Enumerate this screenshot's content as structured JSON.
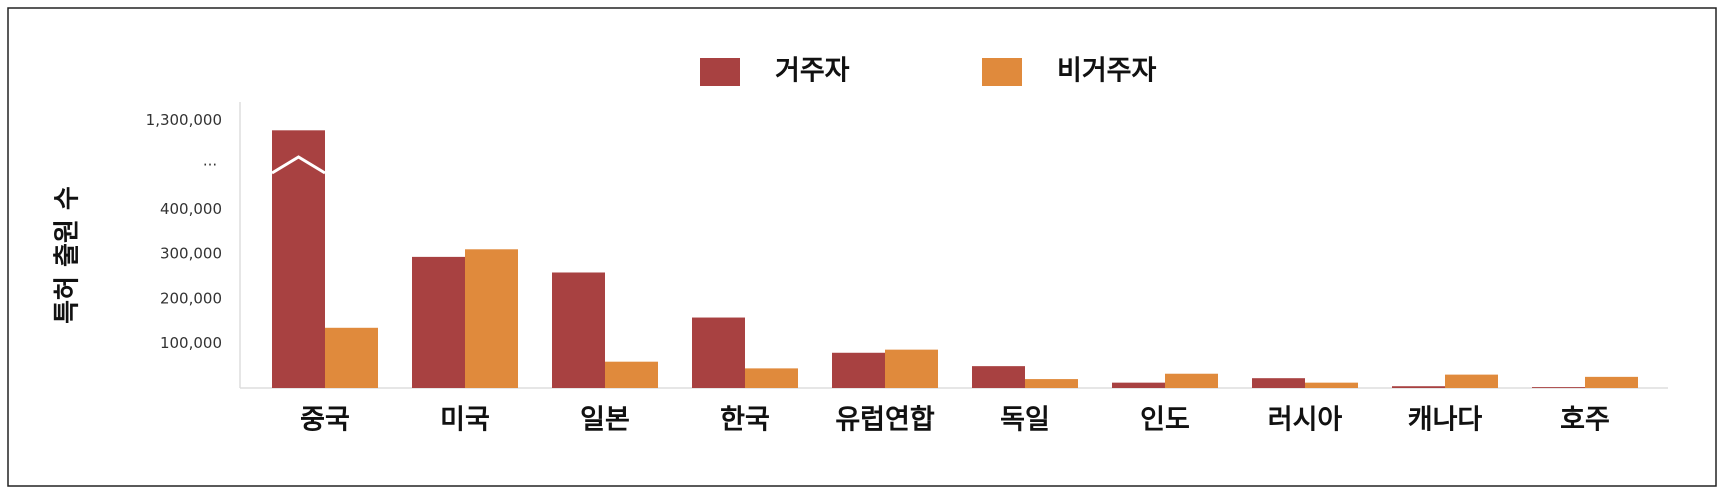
{
  "chart_data": {
    "type": "bar",
    "y_label": "특허 출원 수",
    "categories": [
      "중국",
      "미국",
      "일본",
      "한국",
      "유럽연합",
      "독일",
      "인도",
      "러시아",
      "캐나다",
      "호주"
    ],
    "series": [
      {
        "name": "거주자",
        "color": "#a84141",
        "values": [
          1200000,
          294000,
          259000,
          158000,
          79000,
          49000,
          12000,
          22000,
          4000,
          2000
        ]
      },
      {
        "name": "비거주자",
        "color": "#e08a3c",
        "values": [
          135000,
          311000,
          59000,
          44000,
          86000,
          20000,
          32000,
          12000,
          30000,
          25000
        ]
      }
    ],
    "ylim": [
      0,
      1300000
    ],
    "yticks": [
      {
        "value": 100000,
        "label": "100,000"
      },
      {
        "value": 200000,
        "label": "200,000"
      },
      {
        "value": 300000,
        "label": "300,000"
      },
      {
        "value": 400000,
        "label": "400,000"
      },
      {
        "value": 1300000,
        "label": "1,300,000"
      }
    ],
    "axis_break_label": "..."
  }
}
